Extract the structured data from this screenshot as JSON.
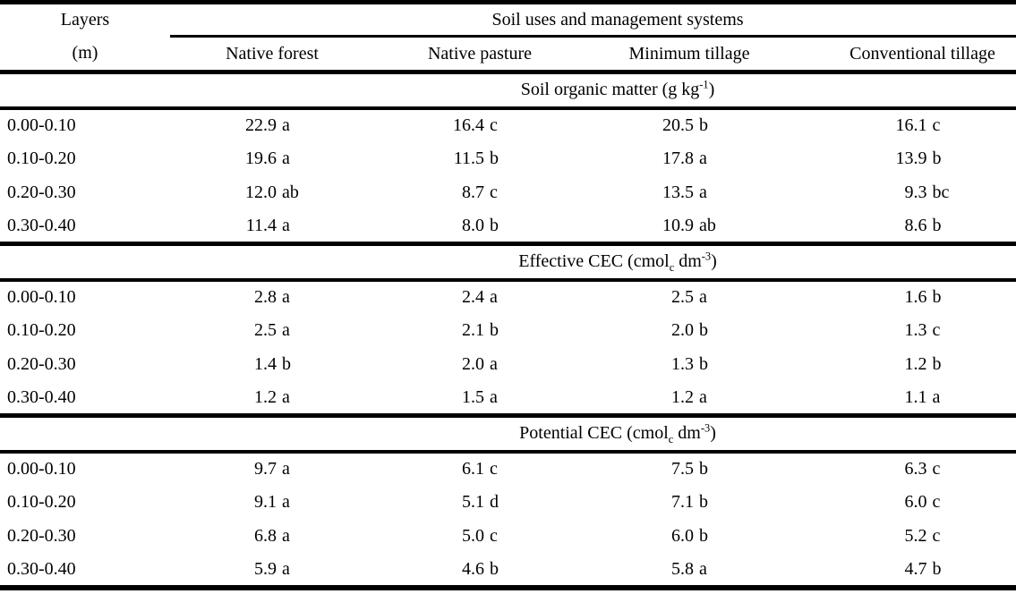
{
  "colors": {
    "background": "#ffffff",
    "text": "#000000",
    "rule_lines": "#000000"
  },
  "table": {
    "row_header": {
      "line1": "Layers",
      "line2": "(m)"
    },
    "group_header": "Soil uses and management systems",
    "columns": [
      "Native forest",
      "Native pasture",
      "Minimum tillage",
      "Conventional tillage"
    ],
    "sections": [
      {
        "title_text": "Soil organic matter (g kg⁻¹)",
        "title_parts": [
          [
            "t",
            "Soil organic matter (g kg"
          ],
          [
            "sup",
            "-1"
          ],
          [
            "t",
            ")"
          ]
        ],
        "rows": [
          {
            "layer": "0.00-0.10",
            "values": [
              "22.9 a",
              "16.4 c",
              "20.5 b",
              "16.1 c"
            ]
          },
          {
            "layer": "0.10-0.20",
            "values": [
              "19.6 a",
              "11.5 b",
              "17.8 a",
              "13.9 b"
            ]
          },
          {
            "layer": "0.20-0.30",
            "values": [
              "12.0 ab",
              "8.7 c",
              "13.5 a",
              "9.3 bc"
            ]
          },
          {
            "layer": "0.30-0.40",
            "values": [
              "11.4 a",
              "8.0 b",
              "10.9 ab",
              "8.6 b"
            ]
          }
        ]
      },
      {
        "title_text": "Effective CEC (cmolc dm⁻³)",
        "title_parts": [
          [
            "t",
            "Effective CEC (cmol"
          ],
          [
            "sub",
            "c"
          ],
          [
            "t",
            " dm"
          ],
          [
            "sup",
            "-3"
          ],
          [
            "t",
            ")"
          ]
        ],
        "rows": [
          {
            "layer": "0.00-0.10",
            "values": [
              "2.8 a",
              "2.4 a",
              "2.5 a",
              "1.6 b"
            ]
          },
          {
            "layer": "0.10-0.20",
            "values": [
              "2.5 a",
              "2.1 b",
              "2.0 b",
              "1.3 c"
            ]
          },
          {
            "layer": "0.20-0.30",
            "values": [
              "1.4 b",
              "2.0 a",
              "1.3 b",
              "1.2 b"
            ]
          },
          {
            "layer": "0.30-0.40",
            "values": [
              "1.2 a",
              "1.5 a",
              "1.2 a",
              "1.1 a"
            ]
          }
        ]
      },
      {
        "title_text": "Potential CEC (cmolc dm⁻³)",
        "title_parts": [
          [
            "t",
            "Potential CEC (cmol"
          ],
          [
            "sub",
            "c"
          ],
          [
            "t",
            " dm"
          ],
          [
            "sup",
            "-3"
          ],
          [
            "t",
            ")"
          ]
        ],
        "rows": [
          {
            "layer": "0.00-0.10",
            "values": [
              "9.7 a",
              "6.1 c",
              "7.5 b",
              "6.3 c"
            ]
          },
          {
            "layer": "0.10-0.20",
            "values": [
              "9.1 a",
              "5.1 d",
              "7.1 b",
              "6.0 c"
            ]
          },
          {
            "layer": "0.20-0.30",
            "values": [
              "6.8 a",
              "5.0 c",
              "6.0 b",
              "5.2 c"
            ]
          },
          {
            "layer": "0.30-0.40",
            "values": [
              "5.9 a",
              "4.6 b",
              "5.8 a",
              "4.7 b"
            ]
          }
        ]
      }
    ]
  }
}
